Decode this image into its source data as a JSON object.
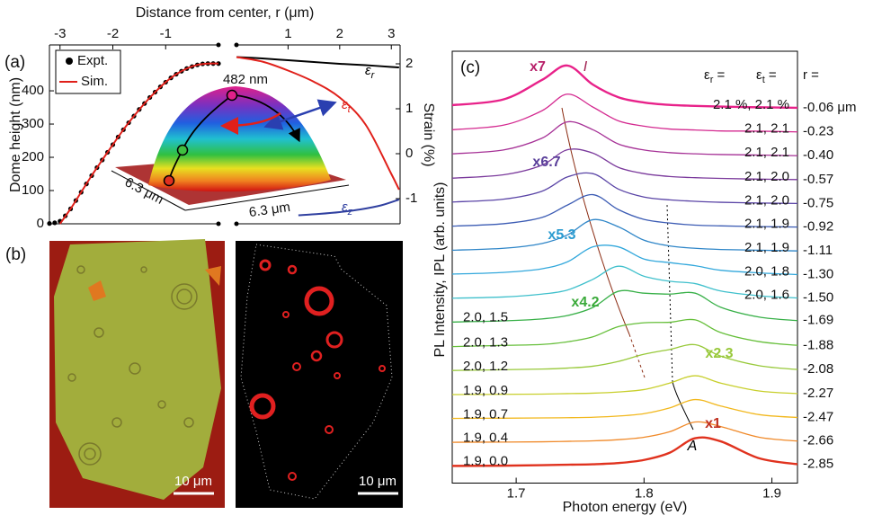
{
  "chart_data": [
    {
      "type": "line",
      "label": "(a)",
      "title": "Distance from center, r (μm)",
      "y_label": "Dome height (nm)",
      "xlim": [
        -3.2,
        0
      ],
      "xticks": [
        -3,
        -2,
        -1
      ],
      "ylim": [
        0,
        538
      ],
      "yticks": [
        0,
        100,
        200,
        300,
        400
      ],
      "legend": "upper left",
      "annotations": [
        "482 nm",
        "6.3 μm",
        "6.3 μm"
      ],
      "series": [
        {
          "name": "Expt.",
          "color": "#000000",
          "mode": "markers",
          "x": [
            -3.2,
            -3.1,
            -3.0,
            -2.9,
            -2.8,
            -2.7,
            -2.6,
            -2.5,
            -2.4,
            -2.3,
            -2.2,
            -2.1,
            -2.0,
            -1.9,
            -1.8,
            -1.7,
            -1.6,
            -1.5,
            -1.4,
            -1.3,
            -1.2,
            -1.1,
            -1.0,
            -0.9,
            -0.8,
            -0.7,
            -0.6,
            -0.5,
            -0.4,
            -0.3,
            -0.2,
            -0.1,
            0
          ],
          "values": [
            1,
            3,
            8,
            24,
            45,
            70,
            95,
            120,
            145,
            169,
            192,
            215,
            238,
            261,
            283,
            304,
            324,
            344,
            362,
            380,
            396,
            412,
            426,
            439,
            450,
            459,
            467,
            473,
            478,
            481,
            482,
            482,
            482
          ]
        },
        {
          "name": "Sim.",
          "color": "#e0201a",
          "mode": "line",
          "x": [
            -3.0,
            -2.8,
            -2.6,
            -2.4,
            -2.2,
            -2.0,
            -1.8,
            -1.6,
            -1.4,
            -1.2,
            -1.0,
            -0.8,
            -0.6,
            -0.4,
            -0.2,
            0
          ],
          "values": [
            0,
            45,
            95,
            145,
            192,
            238,
            283,
            324,
            362,
            396,
            426,
            450,
            467,
            478,
            482,
            482
          ]
        }
      ]
    },
    {
      "type": "line",
      "y_label": "Strain (%)",
      "xlim": [
        0,
        3.17
      ],
      "xticks": [
        1,
        2,
        3
      ],
      "ylim": [
        -1.56,
        2.42
      ],
      "yticks": [
        -1,
        0,
        1,
        2
      ],
      "series": [
        {
          "name": "εr",
          "color": "#000000",
          "x": [
            0,
            0.5,
            1,
            1.5,
            2,
            2.5,
            3,
            3.15
          ],
          "values": [
            2.15,
            2.12,
            2.08,
            2.04,
            2.0,
            1.97,
            1.93,
            1.92
          ]
        },
        {
          "name": "εt",
          "color": "#e0201a",
          "x": [
            0,
            0.5,
            1,
            1.5,
            2,
            2.5,
            3,
            3.15
          ],
          "values": [
            2.15,
            2.05,
            1.85,
            1.6,
            1.25,
            0.65,
            -0.45,
            -0.8
          ]
        },
        {
          "name": "εz",
          "color": "#3040a0",
          "x": [
            1.2,
            1.6,
            2.0,
            2.4,
            2.8,
            3.15
          ],
          "values": [
            -1.37,
            -1.34,
            -1.3,
            -1.24,
            -1.15,
            -1.02
          ]
        }
      ]
    },
    {
      "type": "line",
      "label": "(c)",
      "x_label": "Photon energy (eV)",
      "y_label": "PL Intensity, IPL (arb. units)",
      "xlim": [
        1.65,
        1.92
      ],
      "xticks": [
        1.7,
        1.8,
        1.9
      ],
      "ylim": [
        0.3,
        18.4
      ],
      "header": [
        "εr =",
        "εt =",
        "r ="
      ],
      "x": [
        1.65,
        1.69,
        1.72,
        1.74,
        1.76,
        1.78,
        1.8,
        1.82,
        1.84,
        1.86,
        1.89,
        1.92
      ],
      "series": [
        {
          "name": "-0.06 μm",
          "strain": "2.1 %, 2.1 %",
          "color": "#e8228a",
          "values": [
            16.14,
            16.38,
            17.19,
            17.8,
            17.0,
            16.47,
            16.25,
            16.15,
            16.11,
            16.08,
            16.05,
            16.03
          ]
        },
        {
          "name": "-0.23",
          "strain": "2.1, 2.1",
          "color": "#d42a90",
          "values": [
            15.11,
            15.3,
            15.9,
            16.6,
            16.06,
            15.48,
            15.26,
            15.14,
            15.1,
            15.06,
            15.05,
            15.02
          ]
        },
        {
          "name": "-0.40",
          "strain": "2.1, 2.1",
          "color": "#a63196",
          "values": [
            14.1,
            14.26,
            14.75,
            15.44,
            15.11,
            14.51,
            14.26,
            14.15,
            14.1,
            14.07,
            14.05,
            14.02
          ]
        },
        {
          "name": "-0.57",
          "strain": "2.1, 2.0",
          "color": "#7b3a9c",
          "values": [
            13.08,
            13.22,
            13.62,
            14.27,
            14.13,
            13.53,
            13.27,
            13.15,
            13.1,
            13.07,
            13.04,
            13.02
          ]
        },
        {
          "name": "-0.75",
          "strain": "2.1, 2.0",
          "color": "#5a44a6",
          "values": [
            12.08,
            12.2,
            12.53,
            13.13,
            13.27,
            12.62,
            12.29,
            12.17,
            12.11,
            12.07,
            12.04,
            12.02
          ]
        },
        {
          "name": "-0.92",
          "strain": "2.1, 1.9",
          "color": "#3c5cb4",
          "values": [
            11.07,
            11.17,
            11.43,
            11.95,
            12.39,
            11.76,
            11.35,
            11.2,
            11.11,
            11.08,
            11.05,
            11.03
          ]
        },
        {
          "name": "-1.11",
          "strain": "2.1, 1.9",
          "color": "#2f86c8",
          "values": [
            10.06,
            10.14,
            10.34,
            10.7,
            11.34,
            11.04,
            10.48,
            10.24,
            10.14,
            10.09,
            10.06,
            10.03
          ]
        },
        {
          "name": "-1.30",
          "strain": "2.0, 1.8",
          "color": "#33a8dc",
          "values": [
            9.06,
            9.13,
            9.28,
            9.57,
            10.2,
            10.2,
            9.69,
            9.54,
            9.41,
            9.22,
            9.11,
            9.04
          ]
        },
        {
          "name": "-1.50",
          "strain": "2.0, 1.6",
          "color": "#40c0cc",
          "values": [
            8.05,
            8.1,
            8.22,
            8.39,
            8.84,
            9.39,
            8.97,
            8.76,
            8.66,
            8.35,
            8.15,
            8.06
          ]
        },
        {
          "name": "-1.69",
          "strain": "2.0, 1.5",
          "color": "#38b048",
          "values": [
            7.05,
            7.1,
            7.18,
            7.32,
            7.66,
            8.34,
            8.26,
            8.22,
            8.26,
            7.67,
            7.26,
            7.11
          ]
        },
        {
          "name": "-1.88",
          "strain": "2.0, 1.3",
          "color": "#66bf3a",
          "values": [
            6.02,
            6.07,
            6.11,
            6.22,
            6.43,
            6.86,
            7.02,
            7.04,
            7.14,
            6.61,
            6.23,
            6.07
          ]
        },
        {
          "name": "-2.08",
          "strain": "2.0, 1.2",
          "color": "#98c93a",
          "values": [
            5.02,
            5.05,
            5.08,
            5.12,
            5.2,
            5.4,
            5.7,
            5.9,
            6.1,
            5.62,
            5.22,
            5.06
          ]
        },
        {
          "name": "-2.27",
          "strain": "1.9, 0.9",
          "color": "#c8cf2c",
          "values": [
            4.01,
            4.02,
            4.03,
            4.05,
            4.07,
            4.12,
            4.22,
            4.49,
            4.8,
            4.49,
            4.16,
            4.05
          ]
        },
        {
          "name": "-2.47",
          "strain": "1.9, 0.7",
          "color": "#f2b81e",
          "values": [
            3.01,
            3.02,
            3.03,
            3.04,
            3.06,
            3.11,
            3.21,
            3.45,
            3.8,
            3.53,
            3.17,
            3.05
          ]
        },
        {
          "name": "-2.66",
          "strain": "1.9, 0.4",
          "color": "#f08a2a",
          "values": [
            2.01,
            2.02,
            2.03,
            2.05,
            2.07,
            2.12,
            2.22,
            2.45,
            2.86,
            2.67,
            2.22,
            2.06
          ]
        },
        {
          "name": "-2.85",
          "strain": "1.9, 0.0",
          "color": "#e0321e",
          "values": [
            1.02,
            1.03,
            1.05,
            1.07,
            1.09,
            1.14,
            1.27,
            1.57,
            2.18,
            2.05,
            1.34,
            1.09
          ]
        }
      ],
      "annotations": [
        {
          "text": "x7",
          "color": "#b8206a"
        },
        {
          "text": "I",
          "color": "#a02050"
        },
        {
          "text": "x6.7",
          "color": "#5a3f9a"
        },
        {
          "text": "x5.3",
          "color": "#2a9bd0"
        },
        {
          "text": "x4.2",
          "color": "#3aaa3a"
        },
        {
          "text": "x2.3",
          "color": "#98c83a"
        },
        {
          "text": "x1",
          "color": "#c03020"
        },
        {
          "text": "A",
          "color": "#000000"
        }
      ]
    }
  ],
  "panel_b": {
    "label": "(b)",
    "scale_bars": [
      "10 μm",
      "10 μm"
    ]
  }
}
